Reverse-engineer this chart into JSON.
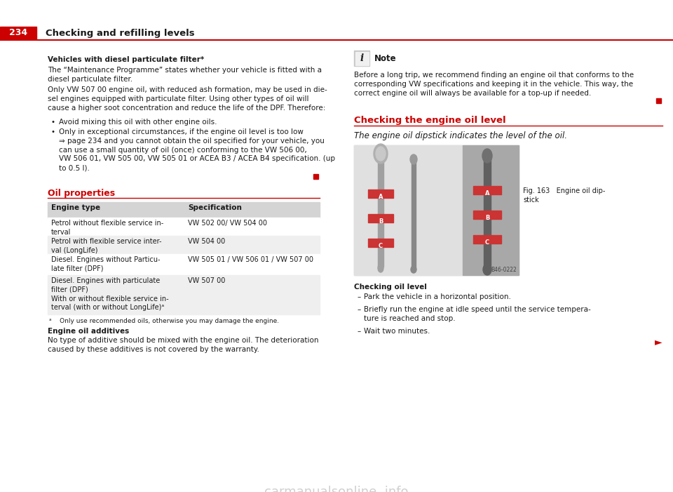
{
  "page_number": "234",
  "header_title": "Checking and refilling levels",
  "header_bg": "#cc0000",
  "bg_color": "#ffffff",
  "section1_title": "Vehicles with diesel particulate filter*",
  "section1_para1": "The “Maintenance Programme” states whether your vehicle is fitted with a\ndiesel particulate filter.",
  "section1_para2": "Only VW 507 00 engine oil, with reduced ash formation, may be used in die-\nsel engines equipped with particulate filter. Using other types of oil will\ncause a higher soot concentration and reduce the life of the DPF. Therefore:",
  "bullet1": "Avoid mixing this oil with other engine oils.",
  "bullet2_line1": "Only in exceptional circumstances, if the engine oil level is too low",
  "bullet2_line2": "⇒ page 234 and you cannot obtain the oil specified for your vehicle, you",
  "bullet2_line3": "can use a small quantity of oil (once) conforming to the VW 506 00,",
  "bullet2_line4": "VW 506 01, VW 505 00, VW 505 01 or ACEA B3 / ACEA B4 specification. (up",
  "bullet2_line5": "to 0.5 l).",
  "section_oil_title": "Oil properties",
  "table_header": [
    "Engine type",
    "Specification"
  ],
  "table_rows": [
    [
      "Petrol without flexible service in-\nterval",
      "VW 502 00/ VW 504 00"
    ],
    [
      "Petrol with flexible service inter-\nval (LongLife)",
      "VW 504 00"
    ],
    [
      "Diesel. Engines without Particu-\nlate filter (DPF)",
      "VW 505 01 / VW 506 01 / VW 507 00"
    ],
    [
      "Diesel. Engines with particulate\nfilter (DPF)\nWith or without flexible service in-\nterval (with or without LongLife)ᵃ",
      "VW 507 00"
    ]
  ],
  "table_footnote": "ᵃ    Only use recommended oils, otherwise you may damage the engine.",
  "section_additives_title": "Engine oil additives",
  "section_additives_para": "No type of additive should be mixed with the engine oil. The deterioration\ncaused by these additives is not covered by the warranty.",
  "note_title": "Note",
  "note_text": "Before a long trip, we recommend finding an engine oil that conforms to the\ncorresponding VW specifications and keeping it in the vehicle. This way, the\ncorrect engine oil will always be available for a top-up if needed.",
  "section2_title": "Checking the engine oil level",
  "section2_italic": "The engine oil dipstick indicates the level of the oil.",
  "checking_title": "Checking oil level",
  "checking_bullet1": "Park the vehicle in a horizontal position.",
  "checking_bullet2": "Briefly run the engine at idle speed until the service tempera-\nture is reached and stop.",
  "checking_bullet3": "Wait two minutes.",
  "fig_caption": "Fig. 163   Engine oil dip-\nstick",
  "red_color": "#cc0000",
  "text_color": "#1a1a1a",
  "table_header_bg": "#d4d4d4",
  "table_row_alt_bg": "#efefef",
  "table_row_bg": "#ffffff",
  "watermark": "carmanualsonline .info"
}
